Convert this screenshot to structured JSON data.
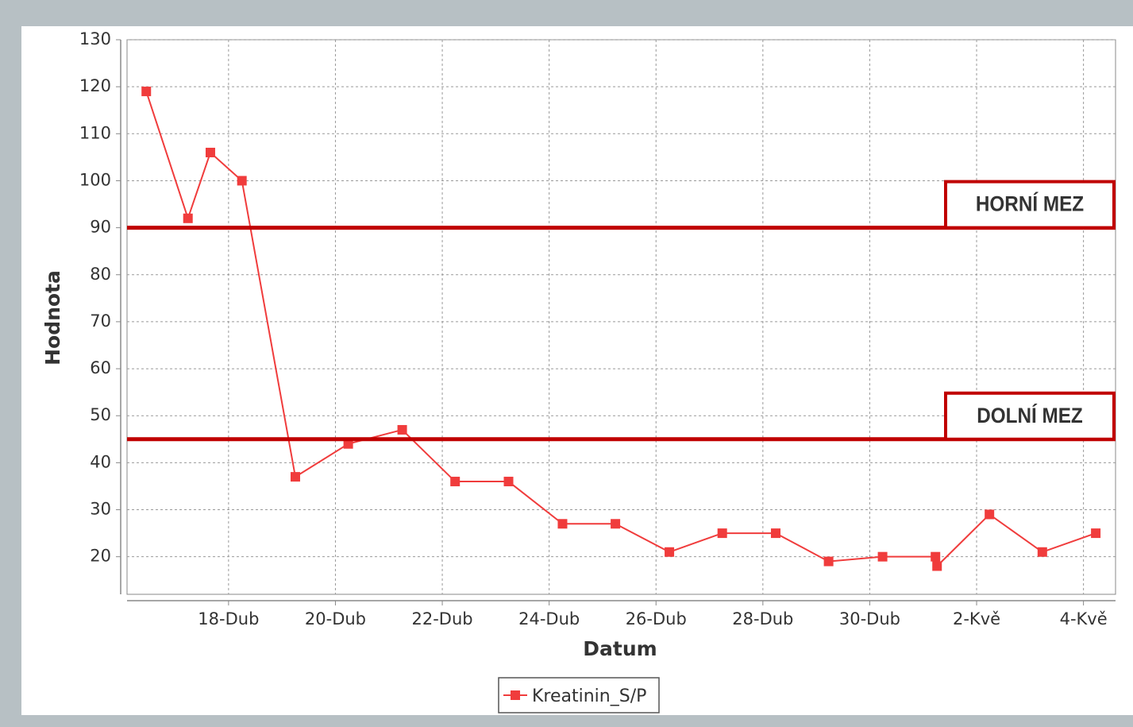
{
  "chart_data": {
    "type": "line",
    "xlabel": "Datum",
    "ylabel": "Hodnota",
    "x": [
      16.46,
      17.24,
      17.66,
      18.25,
      19.25,
      20.24,
      21.25,
      22.24,
      23.24,
      24.25,
      25.24,
      26.25,
      27.24,
      28.24,
      29.23,
      30.24,
      31.23,
      31.26,
      32.24,
      33.23,
      34.23
    ],
    "series": [
      {
        "name": "Kreatinin_S/P",
        "color": "#f03c3c",
        "values": [
          119,
          92,
          106,
          100,
          37,
          44,
          47,
          36,
          36,
          27,
          27,
          21,
          25,
          25,
          19,
          20,
          20,
          18,
          29,
          21,
          25
        ]
      }
    ],
    "xlim": [
      16.1,
      34.6
    ],
    "xticks": [
      {
        "value": 18,
        "label": "18-Dub"
      },
      {
        "value": 20,
        "label": "20-Dub"
      },
      {
        "value": 22,
        "label": "22-Dub"
      },
      {
        "value": 24,
        "label": "24-Dub"
      },
      {
        "value": 26,
        "label": "26-Dub"
      },
      {
        "value": 28,
        "label": "28-Dub"
      },
      {
        "value": 30,
        "label": "30-Dub"
      },
      {
        "value": 32,
        "label": "2-Kvě"
      },
      {
        "value": 34,
        "label": "4-Kvě"
      }
    ],
    "ylim": [
      12,
      130
    ],
    "yticks": [
      20,
      30,
      40,
      50,
      60,
      70,
      80,
      90,
      100,
      110,
      120,
      130
    ],
    "grid": true,
    "annotations": [
      {
        "label": "HORNÍ MEZ",
        "value": 90,
        "color": "#c00000"
      },
      {
        "label": "DOLNÍ MEZ",
        "value": 45,
        "color": "#c00000"
      }
    ]
  }
}
